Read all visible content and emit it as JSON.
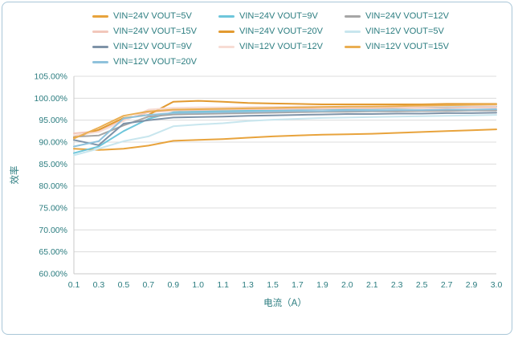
{
  "chart": {
    "text_color": "#2c7d80",
    "grid_color": "#dcdcdc",
    "axis_color": "#c9c9c9",
    "border_color": "#a9c7d8",
    "background": "#ffffff"
  },
  "chart_data": {
    "type": "line",
    "title": "",
    "xlabel": "电流（A）",
    "ylabel": "效率",
    "ylim": [
      60,
      105
    ],
    "y_tick_step": 5,
    "y_tick_labels": [
      "105.00%",
      "100.00%",
      "95.00%",
      "90.00%",
      "85.00%",
      "80.00%",
      "75.00%",
      "70.00%",
      "65.00%",
      "60.00%"
    ],
    "categories": [
      "0.1",
      "0.3",
      "0.5",
      "0.7",
      "0.9",
      "1.0",
      "1.1",
      "1.3",
      "1.5",
      "1.7",
      "1.9",
      "2.0",
      "2.1",
      "2.3",
      "2.5",
      "2.7",
      "2.9",
      "3.0"
    ],
    "grid": "horizontal",
    "legend_position": "top",
    "series": [
      {
        "name": "VIN=24V VOUT=5V",
        "color": "#E8A33C",
        "values": [
          88.5,
          88.2,
          88.5,
          89.2,
          90.3,
          90.5,
          90.7,
          91.0,
          91.3,
          91.5,
          91.7,
          91.8,
          91.9,
          92.1,
          92.3,
          92.5,
          92.7,
          92.9
        ]
      },
      {
        "name": "VIN=24V VOUT=9V",
        "color": "#6EC6DB",
        "values": [
          87.5,
          89.0,
          92.5,
          95.3,
          96.8,
          97.0,
          97.1,
          97.2,
          97.3,
          97.4,
          97.5,
          97.5,
          97.6,
          97.7,
          97.8,
          97.9,
          98.0,
          98.1
        ]
      },
      {
        "name": "VIN=24V VOUT=12V",
        "color": "#A6A6A6",
        "values": [
          91.2,
          91.5,
          93.8,
          95.8,
          96.3,
          96.4,
          96.5,
          96.6,
          96.7,
          96.8,
          96.9,
          96.9,
          97.0,
          97.0,
          97.1,
          97.1,
          97.2,
          97.2
        ]
      },
      {
        "name": "VIN=24V VOUT=15V",
        "color": "#F2C7BB",
        "values": [
          92.0,
          92.5,
          95.2,
          96.8,
          97.2,
          97.3,
          97.4,
          97.5,
          97.5,
          97.6,
          97.6,
          97.7,
          97.7,
          97.8,
          97.8,
          97.8,
          97.9,
          97.9
        ]
      },
      {
        "name": "VIN=24V VOUT=20V",
        "color": "#E29A30",
        "values": [
          91.0,
          92.8,
          95.5,
          96.2,
          99.2,
          99.4,
          99.2,
          98.9,
          98.8,
          98.7,
          98.6,
          98.6,
          98.6,
          98.6,
          98.6,
          98.7,
          98.7,
          98.7
        ]
      },
      {
        "name": "VIN=12V VOUT=5V",
        "color": "#C8E6EE",
        "values": [
          87.0,
          88.5,
          90.2,
          91.3,
          93.6,
          94.0,
          94.3,
          94.8,
          95.1,
          95.3,
          95.5,
          95.6,
          95.7,
          95.8,
          95.9,
          96.0,
          96.1,
          96.2
        ]
      },
      {
        "name": "VIN=12V VOUT=9V",
        "color": "#7E93A8",
        "values": [
          90.5,
          89.3,
          94.2,
          95.0,
          95.6,
          95.7,
          95.8,
          96.0,
          96.1,
          96.2,
          96.3,
          96.4,
          96.4,
          96.5,
          96.5,
          96.6,
          96.6,
          96.7
        ]
      },
      {
        "name": "VIN=12V VOUT=12V",
        "color": "#F7DCD4",
        "values": [
          91.5,
          92.3,
          94.8,
          97.4,
          97.8,
          97.9,
          97.9,
          98.0,
          98.0,
          98.1,
          98.1,
          98.1,
          98.2,
          98.2,
          98.2,
          98.3,
          98.3,
          98.3
        ]
      },
      {
        "name": "VIN=12V VOUT=15V",
        "color": "#EAAE52",
        "values": [
          90.8,
          93.3,
          96.0,
          97.0,
          97.4,
          97.5,
          97.6,
          97.7,
          97.8,
          97.9,
          98.0,
          98.1,
          98.1,
          98.2,
          98.3,
          98.4,
          98.5,
          98.6
        ]
      },
      {
        "name": "VIN=12V VOUT=20V",
        "color": "#8FC2DC",
        "values": [
          89.0,
          90.2,
          95.4,
          96.2,
          96.6,
          96.7,
          96.8,
          96.9,
          97.0,
          97.1,
          97.1,
          97.2,
          97.2,
          97.3,
          97.3,
          97.4,
          97.4,
          97.5
        ]
      }
    ]
  }
}
